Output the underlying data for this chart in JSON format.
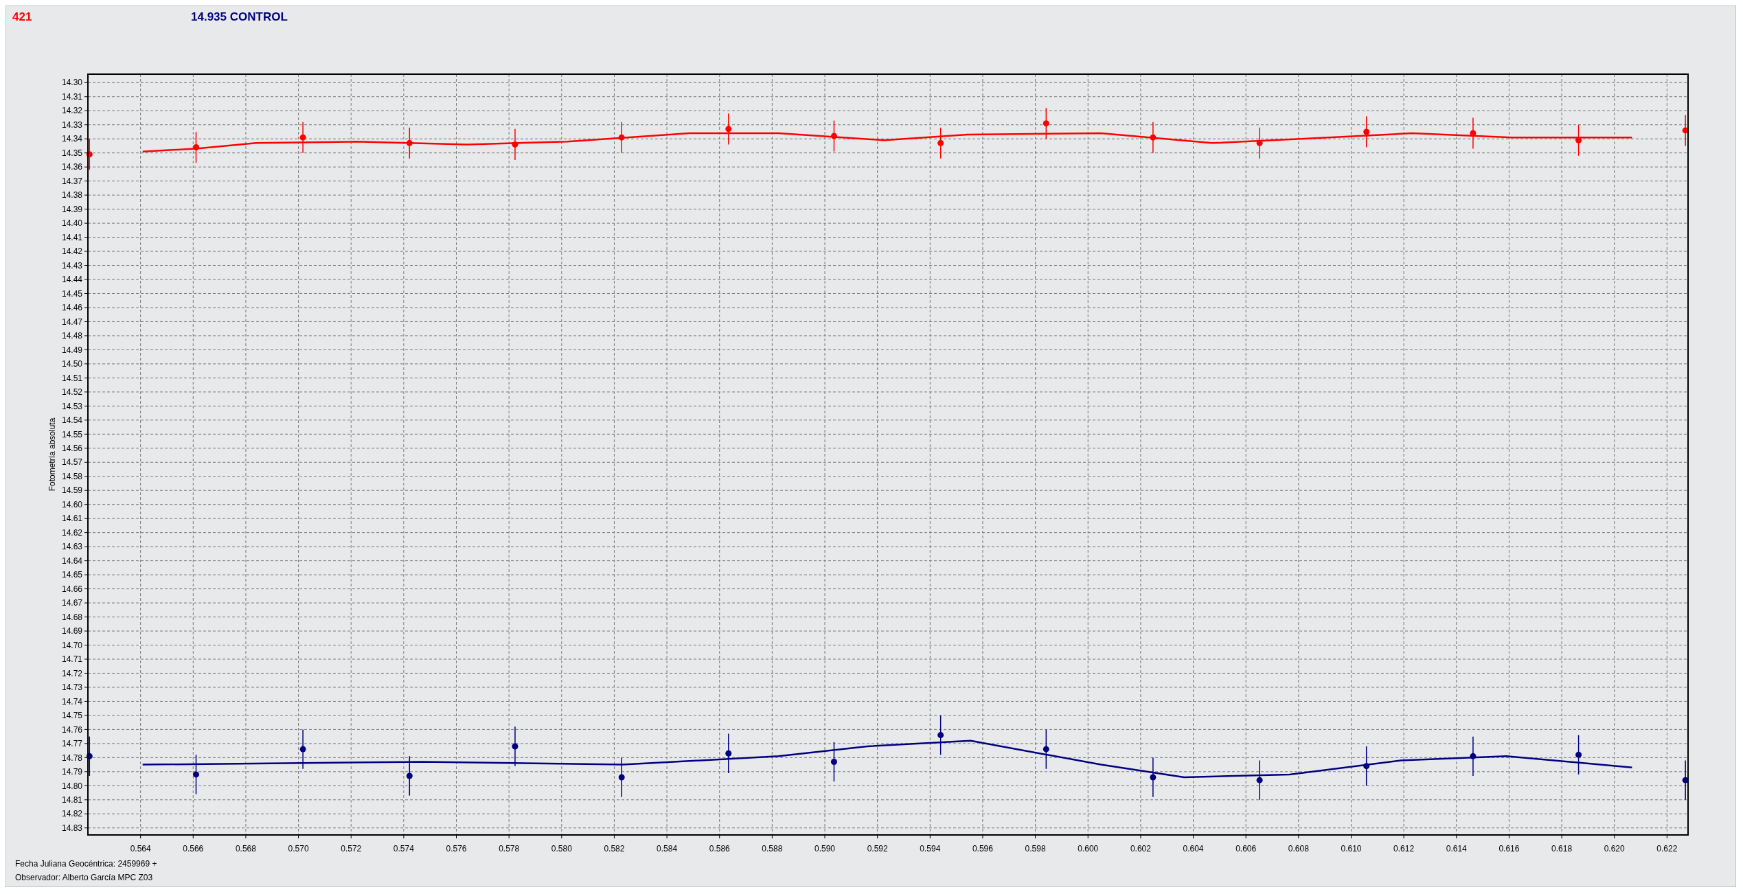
{
  "chart_data": {
    "type": "scatter",
    "ylabel": "Fotometría absoluta",
    "annotations": [
      "Fecha Juliana Geocéntrica: 2459969 +",
      "Observador: Alberto García MPC Z03"
    ],
    "xlim": [
      0.562,
      0.6228
    ],
    "ylim": [
      14.835,
      14.294
    ],
    "xticks": [
      0.564,
      0.566,
      0.568,
      {
        "value": 0.57,
        "label": "0.570"
      },
      0.572,
      0.574,
      0.576,
      0.578,
      {
        "value": 0.58,
        "label": "0.580"
      },
      0.582,
      0.584,
      0.586,
      0.588,
      {
        "value": 0.59,
        "label": "0.590"
      },
      0.592,
      0.594,
      0.596,
      0.598,
      {
        "value": 0.6,
        "label": "0.600"
      },
      0.602,
      0.604,
      0.606,
      0.608,
      {
        "value": 0.61,
        "label": "0.610"
      },
      0.612,
      0.614,
      0.616,
      0.618,
      {
        "value": 0.62,
        "label": "0.620"
      },
      0.622
    ],
    "yticks": [
      {
        "value": 14.3,
        "label": "14.30"
      },
      14.31,
      14.32,
      14.33,
      14.34,
      14.35,
      14.36,
      14.37,
      14.38,
      14.39,
      {
        "value": 14.4,
        "label": "14.40"
      },
      14.41,
      14.42,
      14.43,
      14.44,
      14.45,
      14.46,
      14.47,
      14.48,
      14.49,
      {
        "value": 14.5,
        "label": "14.50"
      },
      14.51,
      14.52,
      14.53,
      14.54,
      14.55,
      14.56,
      14.57,
      14.58,
      14.59,
      {
        "value": 14.6,
        "label": "14.60"
      },
      14.61,
      14.62,
      14.63,
      14.64,
      14.65,
      14.66,
      14.67,
      14.68,
      14.69,
      {
        "value": 14.7,
        "label": "14.70"
      },
      14.71,
      14.72,
      14.73,
      14.74,
      14.75,
      14.76,
      14.77,
      14.78,
      14.79,
      {
        "value": 14.8,
        "label": "14.80"
      },
      14.81,
      14.82,
      14.83
    ],
    "grid": true,
    "legend": "top",
    "x": [
      0.56206,
      0.56611,
      0.57017,
      0.57422,
      0.57823,
      0.58228,
      0.58634,
      0.59035,
      0.5944,
      0.59841,
      0.60247,
      0.60652,
      0.61058,
      0.61463,
      0.61864,
      0.6227
    ],
    "series": [
      {
        "name": "421",
        "color": "#ff0000",
        "marker": "circle",
        "values": [
          14.351,
          14.346,
          14.339,
          14.343,
          14.344,
          14.339,
          14.333,
          14.338,
          14.343,
          14.329,
          14.339,
          14.343,
          14.335,
          14.336,
          14.341,
          14.334
        ],
        "errors": [
          0.011,
          0.011,
          0.011,
          0.011,
          0.011,
          0.011,
          0.011,
          0.011,
          0.011,
          0.011,
          0.011,
          0.011,
          0.011,
          0.011,
          0.011,
          0.011
        ]
      },
      {
        "name": "14.935 CONTROL",
        "color": "#000080",
        "marker": "circle",
        "values": [
          14.779,
          14.792,
          14.774,
          14.793,
          14.772,
          14.794,
          14.777,
          14.783,
          14.764,
          14.774,
          14.794,
          14.796,
          14.786,
          14.779,
          14.778,
          14.796
        ],
        "errors": [
          0.014,
          0.014,
          0.014,
          0.014,
          0.014,
          0.014,
          0.014,
          0.014,
          0.014,
          0.014,
          0.014,
          0.014,
          0.014,
          0.014,
          0.014,
          0.014
        ]
      },
      {
        "type": "line",
        "marker": "none",
        "color": "#ff0000",
        "x": [
          0.56408,
          0.56611,
          0.56839,
          0.57219,
          0.57641,
          0.58021,
          0.58486,
          0.58824,
          0.59225,
          0.59542,
          0.60049,
          0.60471,
          0.60809,
          0.61231,
          0.61611,
          0.62067
        ],
        "values": [
          14.349,
          14.347,
          14.343,
          14.342,
          14.344,
          14.342,
          14.336,
          14.336,
          14.341,
          14.337,
          14.336,
          14.343,
          14.34,
          14.336,
          14.339,
          14.339
        ]
      },
      {
        "type": "line",
        "marker": "none",
        "color": "#000080",
        "x": [
          0.56408,
          0.57472,
          0.58232,
          0.58824,
          0.59161,
          0.59554,
          0.60049,
          0.60365,
          0.60766,
          0.61188,
          0.61589,
          0.62067
        ],
        "values": [
          14.785,
          14.783,
          14.785,
          14.779,
          14.772,
          14.768,
          14.785,
          14.794,
          14.792,
          14.782,
          14.779,
          14.787
        ]
      }
    ]
  }
}
